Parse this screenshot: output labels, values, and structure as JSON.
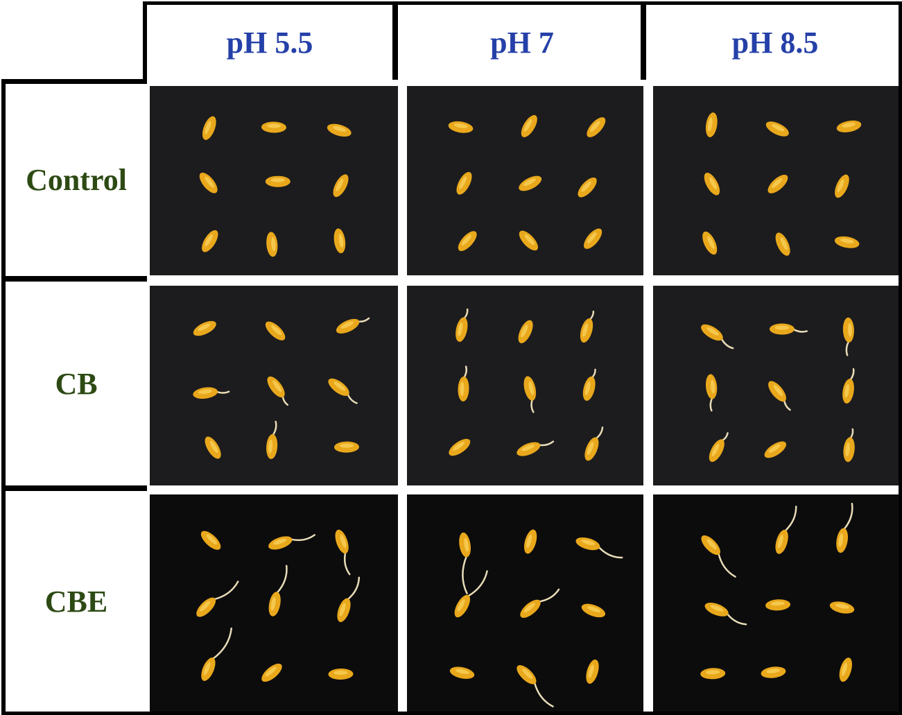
{
  "columns": [
    "pH 5.5",
    "pH 7",
    "pH 8.5"
  ],
  "rows": [
    "Control",
    "CB",
    "CBE"
  ],
  "colors": {
    "header_text": "#2540a8",
    "row_label_text": "#2d4a14",
    "background_dark": "#1c1c1e",
    "seed": "#e9a81c"
  }
}
